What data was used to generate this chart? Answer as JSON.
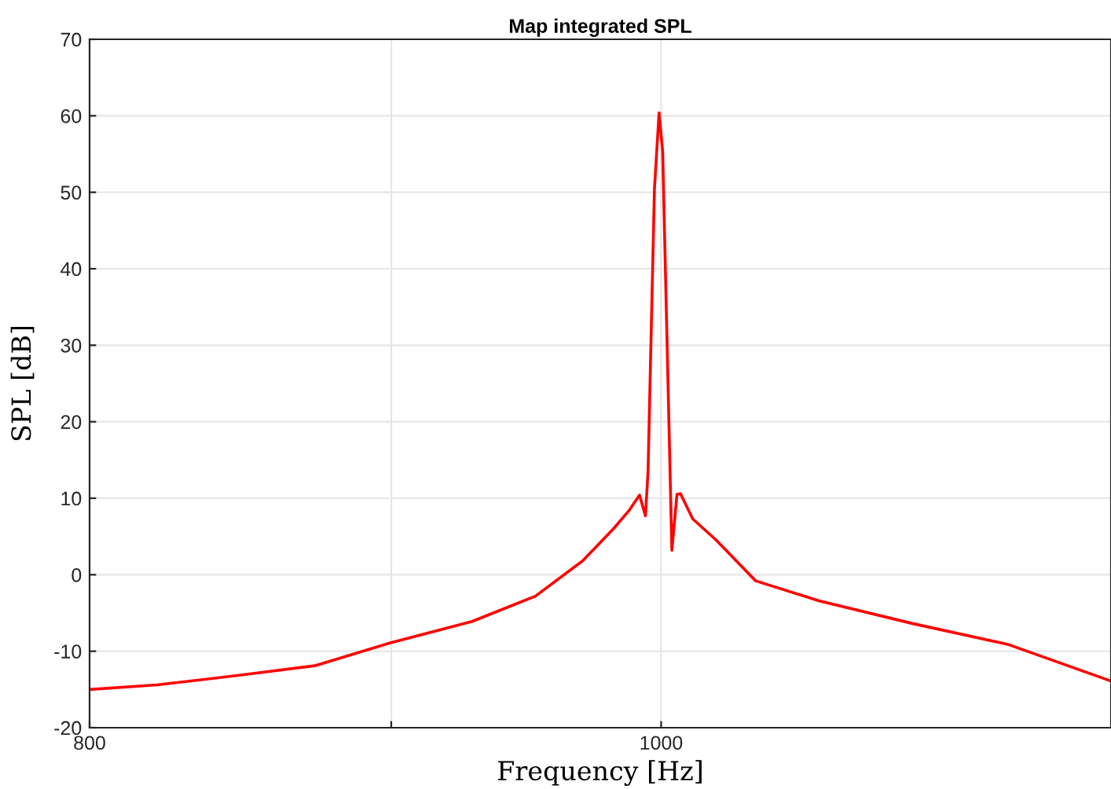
{
  "chart_data": {
    "type": "line",
    "title": "Map integrated SPL",
    "xlabel": "Frequency [Hz]",
    "ylabel": "SPL [dB]",
    "x": [
      800,
      821.4,
      847.1,
      873.5,
      899.7,
      928.9,
      952.1,
      969.8,
      981.8,
      987.8,
      991.6,
      993.9,
      994.9,
      997.4,
      999.2,
      1000.6,
      1004.2,
      1006.2,
      1007.6,
      1012.4,
      1021.8,
      1037.6,
      1063.5,
      1103.4,
      1144.9,
      1192
    ],
    "series": [
      {
        "color": "#ff0000",
        "values": [
          -15.0,
          -14.4,
          -13.2,
          -11.9,
          -8.9,
          -6.1,
          -2.8,
          1.8,
          6.1,
          8.5,
          10.4,
          7.7,
          13.5,
          50.5,
          60.4,
          55.3,
          3.2,
          10.5,
          10.6,
          7.3,
          4.5,
          -0.8,
          -3.4,
          -6.4,
          -9.1,
          -13.9
        ]
      }
    ],
    "log": "x",
    "xlim": [
      800,
      1192
    ],
    "xticks": [
      800,
      {
        "value": 900,
        "label": null
      },
      1000
    ],
    "ylim": [
      -20,
      70
    ],
    "yticks": [
      -20,
      -10,
      0,
      10,
      20,
      30,
      40,
      50,
      60,
      70
    ],
    "grid": true,
    "marker": "none",
    "line_style": "solid",
    "legend": false
  }
}
